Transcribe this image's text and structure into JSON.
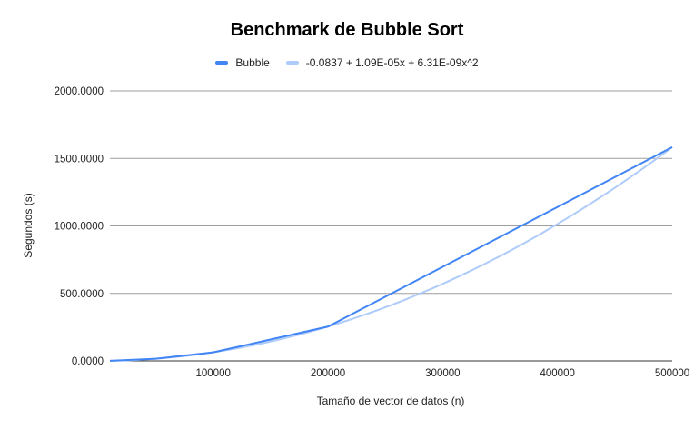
{
  "chart_data": {
    "type": "line",
    "title": "Benchmark de Bubble Sort",
    "xlabel": "Tamaño de vector de datos (n)",
    "ylabel": "Segundos (s)",
    "xlim": [
      10000,
      500000
    ],
    "ylim": [
      0,
      2000
    ],
    "x_ticks": [
      100000,
      200000,
      300000,
      400000,
      500000
    ],
    "x_tick_labels": [
      "100000",
      "200000",
      "300000",
      "400000",
      "500000"
    ],
    "y_ticks": [
      0,
      500,
      1000,
      1500,
      2000
    ],
    "y_tick_labels": [
      "0.0000",
      "500.0000",
      "1000.0000",
      "1500.0000",
      "2000.0000"
    ],
    "grid": "horizontal",
    "legend_position": "top",
    "series": [
      {
        "name": "Bubble",
        "color": "#4285f4",
        "x": [
          10000,
          50000,
          100000,
          200000,
          500000
        ],
        "y": [
          0.6,
          16,
          63,
          254,
          1583
        ]
      },
      {
        "name": "-0.0837 + 1.09E-05x + 6.31E-09x^2",
        "color": "#aecbfa",
        "trendline": {
          "a": -0.0837,
          "b": 1.09e-05,
          "c": 6.31e-09
        }
      }
    ]
  }
}
